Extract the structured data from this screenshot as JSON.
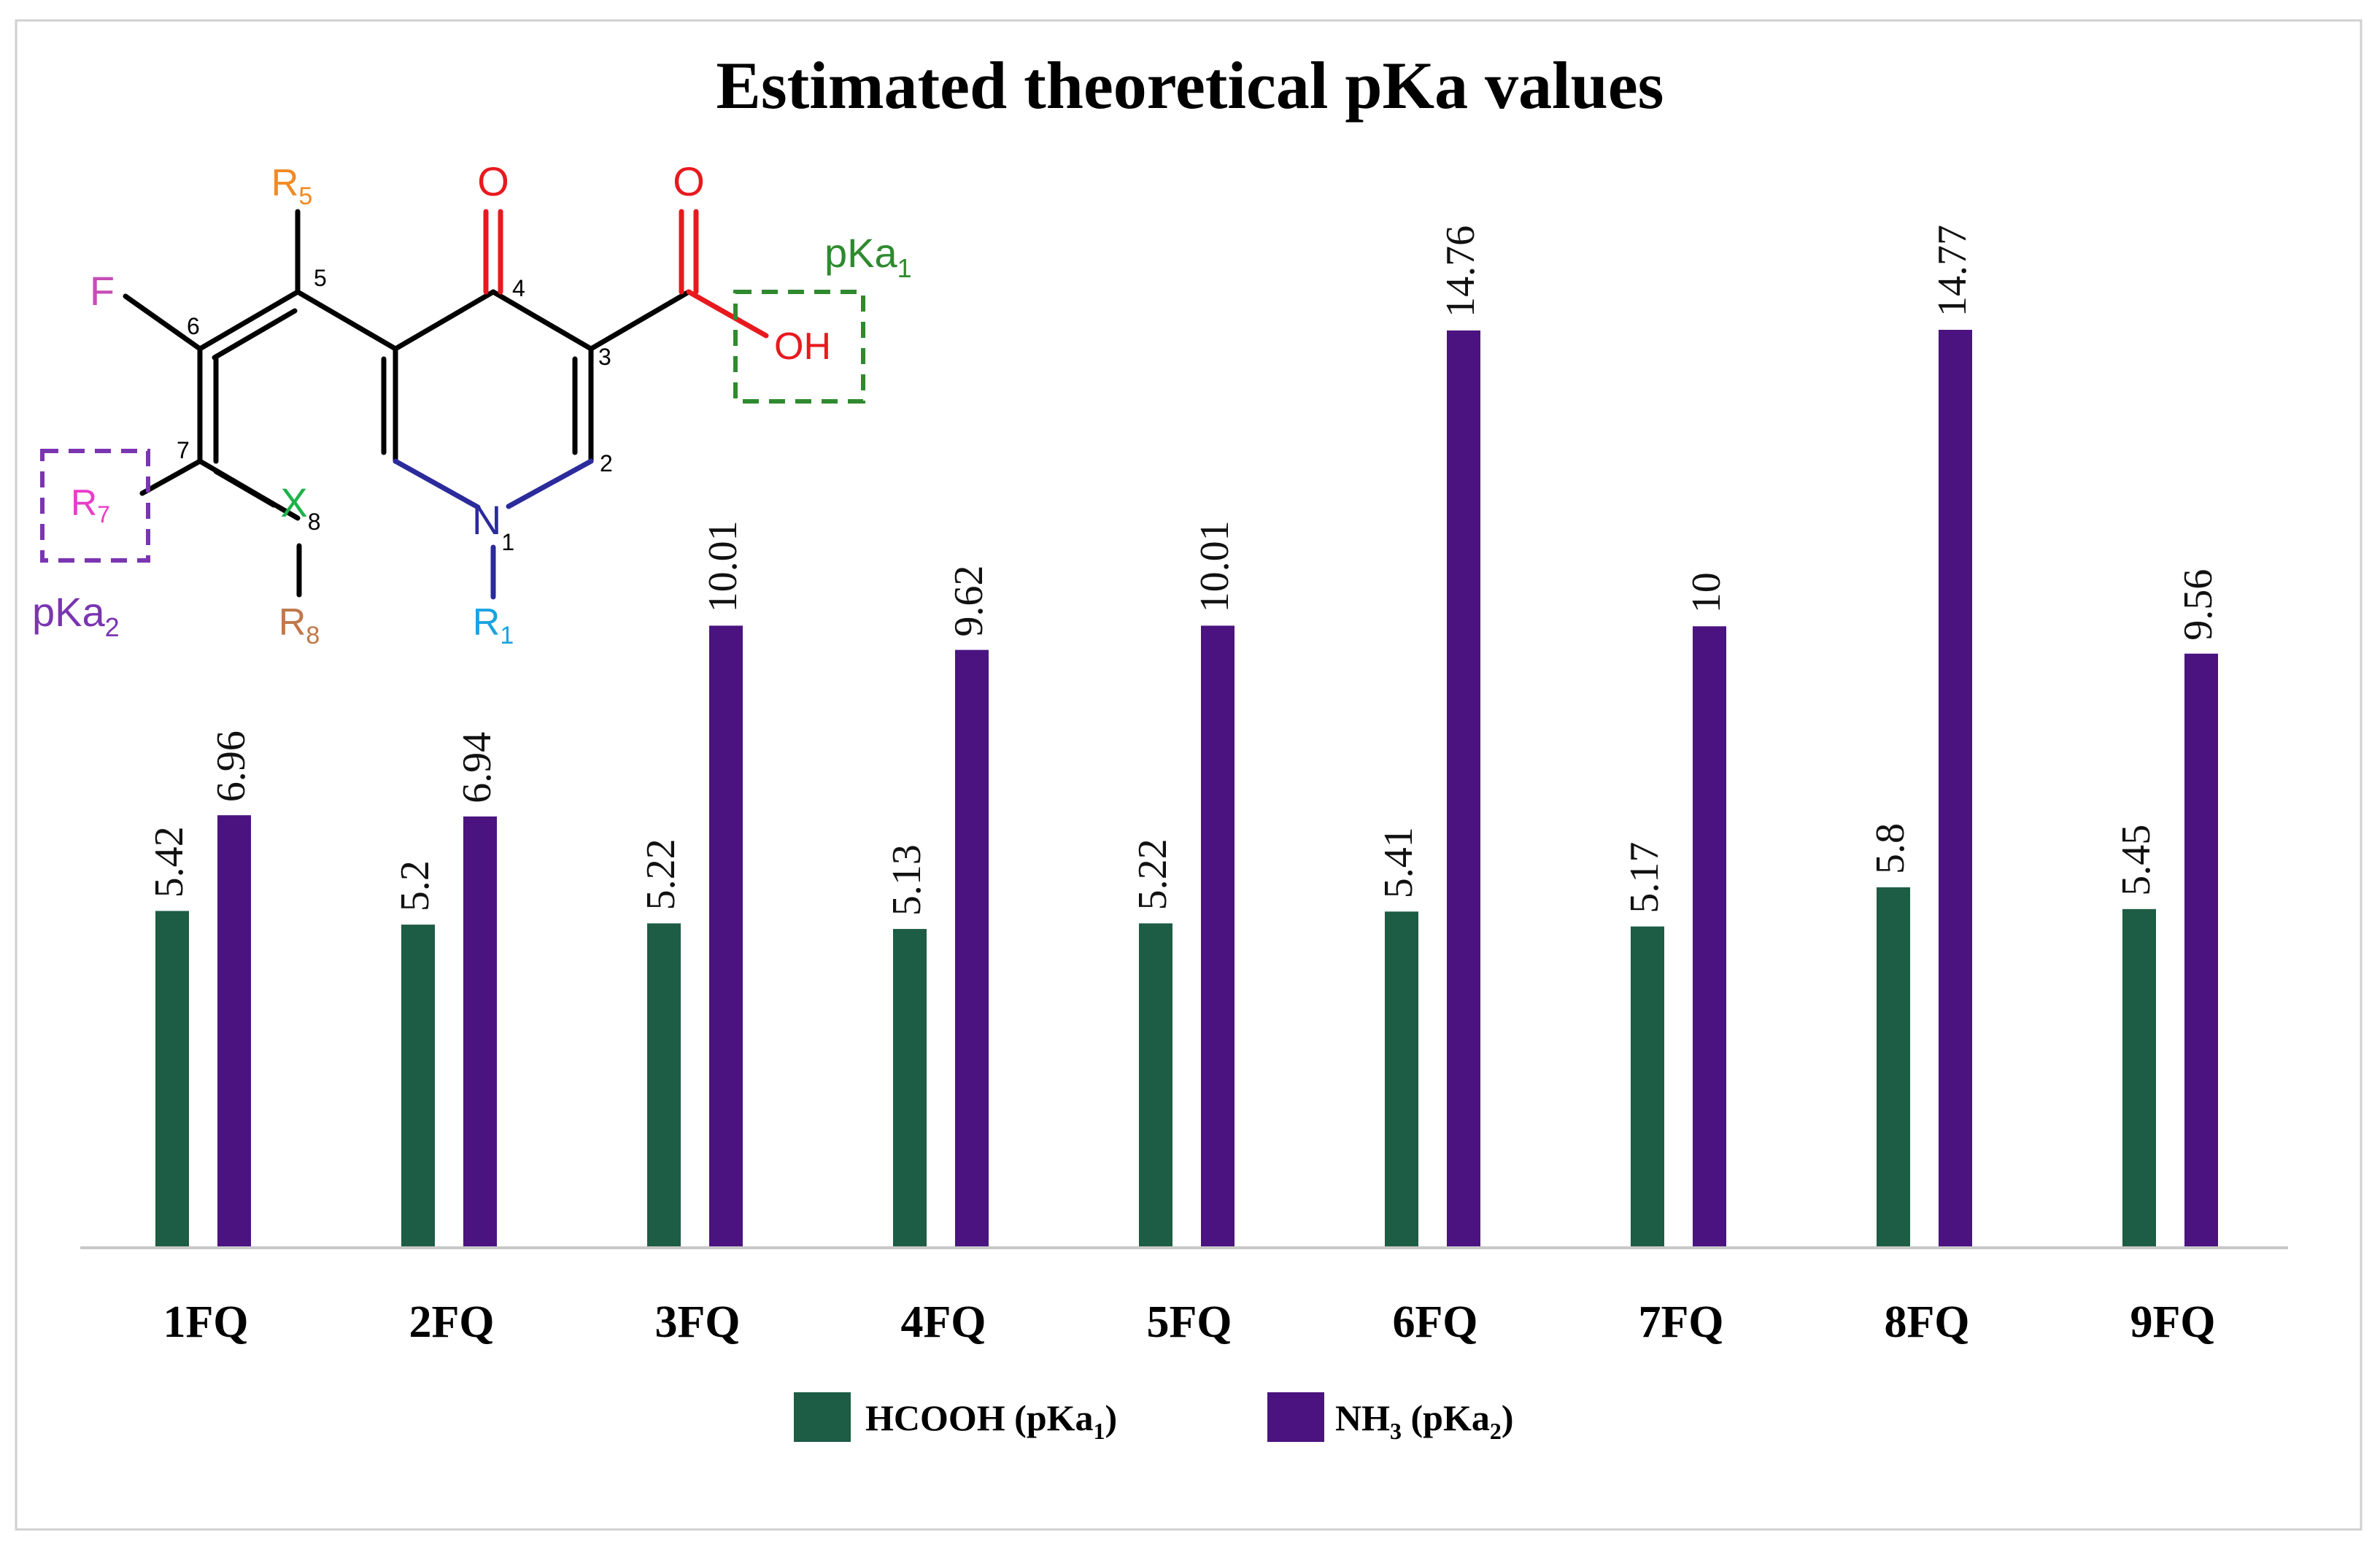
{
  "chart_data": {
    "type": "bar",
    "title": "Estimated theoretical pKa values",
    "categories": [
      "1FQ",
      "2FQ",
      "3FQ",
      "4FQ",
      "5FQ",
      "6FQ",
      "7FQ",
      "8FQ",
      "9FQ"
    ],
    "series": [
      {
        "name": "HCOOH (pKa1)",
        "legend_main": "HCOOH (pKa",
        "legend_sub": "1",
        "legend_tail": ")",
        "color": "#1d5c45",
        "values": [
          5.42,
          5.2,
          5.22,
          5.13,
          5.22,
          5.41,
          5.17,
          5.8,
          5.45
        ],
        "labels": [
          "5.42",
          "5.2",
          "5.22",
          "5.13",
          "5.22",
          "5.41",
          "5.17",
          "5.8",
          "5.45"
        ]
      },
      {
        "name": "NH3 (pKa2)",
        "legend_main": "NH",
        "legend_sub": "3",
        "legend_mid": " (pKa",
        "legend_sub2": "2",
        "legend_tail": ")",
        "color": "#4b1380",
        "values": [
          6.96,
          6.94,
          10.01,
          9.62,
          10.01,
          14.76,
          10,
          14.77,
          9.56
        ],
        "labels": [
          "6.96",
          "6.94",
          "10.01",
          "9.62",
          "10.01",
          "14.76",
          "10",
          "14.77",
          "9.56"
        ]
      }
    ],
    "ylim": [
      0,
      14.77
    ],
    "xlabel": "",
    "ylabel": "",
    "grid": false,
    "legend_position": "bottom"
  },
  "molecule": {
    "atoms": {
      "F": "F",
      "O_keto": "O",
      "O_acid": "O",
      "OH": "OH",
      "N": "N",
      "N_sub": "1",
      "X": "X",
      "X_sub": "8",
      "R5": "R",
      "R5_sub": "5",
      "R7": "R",
      "R7_sub": "7",
      "R8": "R",
      "R8_sub": "8",
      "R1": "R",
      "R1_sub": "1"
    },
    "ring_numbers": [
      "5",
      "4",
      "6",
      "3",
      "7",
      "2"
    ],
    "pka1_label": "pKa",
    "pka1_sub": "1",
    "pka2_label": "pKa",
    "pka2_sub": "2",
    "colors": {
      "bond": "#000000",
      "oxygen": "#e8191e",
      "nitrogen": "#2b2b9c",
      "r1": "#1aa3e0",
      "x": "#1fb24a",
      "r5": "#f08a24",
      "r8": "#c0784a",
      "fluorine": "#c84cb4",
      "r7": "#e83cc8",
      "pka1": "#2f8a2f",
      "pka2": "#7a35b0"
    }
  }
}
